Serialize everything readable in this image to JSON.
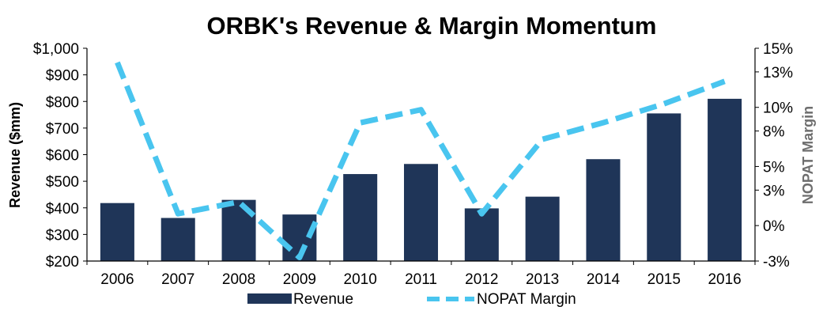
{
  "chart_data": {
    "type": "bar+line",
    "title": "ORBK's Revenue & Margin Momentum",
    "categories": [
      "2006",
      "2007",
      "2008",
      "2009",
      "2010",
      "2011",
      "2012",
      "2013",
      "2014",
      "2015",
      "2016"
    ],
    "series": [
      {
        "name": "Revenue",
        "type": "bar",
        "axis": "left",
        "color": "#1f3558",
        "values": [
          418,
          362,
          430,
          375,
          527,
          565,
          398,
          442,
          583,
          755,
          810
        ]
      },
      {
        "name": "NOPAT Margin",
        "type": "line",
        "axis": "right",
        "style": "dashed",
        "color": "#49c5ef",
        "values": [
          13.8,
          1.0,
          2.0,
          -2.7,
          8.7,
          9.8,
          1.0,
          7.3,
          8.7,
          10.3,
          12.2
        ]
      }
    ],
    "y_left": {
      "label": "Revenue ($mm)",
      "min": 200,
      "max": 1000,
      "ticks": [
        200,
        300,
        400,
        500,
        600,
        700,
        800,
        900,
        1000
      ],
      "tick_labels": [
        "$200",
        "$300",
        "$400",
        "$500",
        "$600",
        "$700",
        "$800",
        "$900",
        "$1,000"
      ]
    },
    "y_right": {
      "label": "NOPAT Margin",
      "min": -3,
      "max": 15,
      "ticks": [
        -3,
        0,
        3,
        5,
        8,
        10,
        13,
        15
      ],
      "tick_labels": [
        "-3%",
        "0%",
        "3%",
        "5%",
        "8%",
        "10%",
        "13%",
        "15%"
      ]
    },
    "grid": false,
    "legend": {
      "position": "bottom",
      "entries": [
        "Revenue",
        "NOPAT Margin"
      ]
    }
  }
}
